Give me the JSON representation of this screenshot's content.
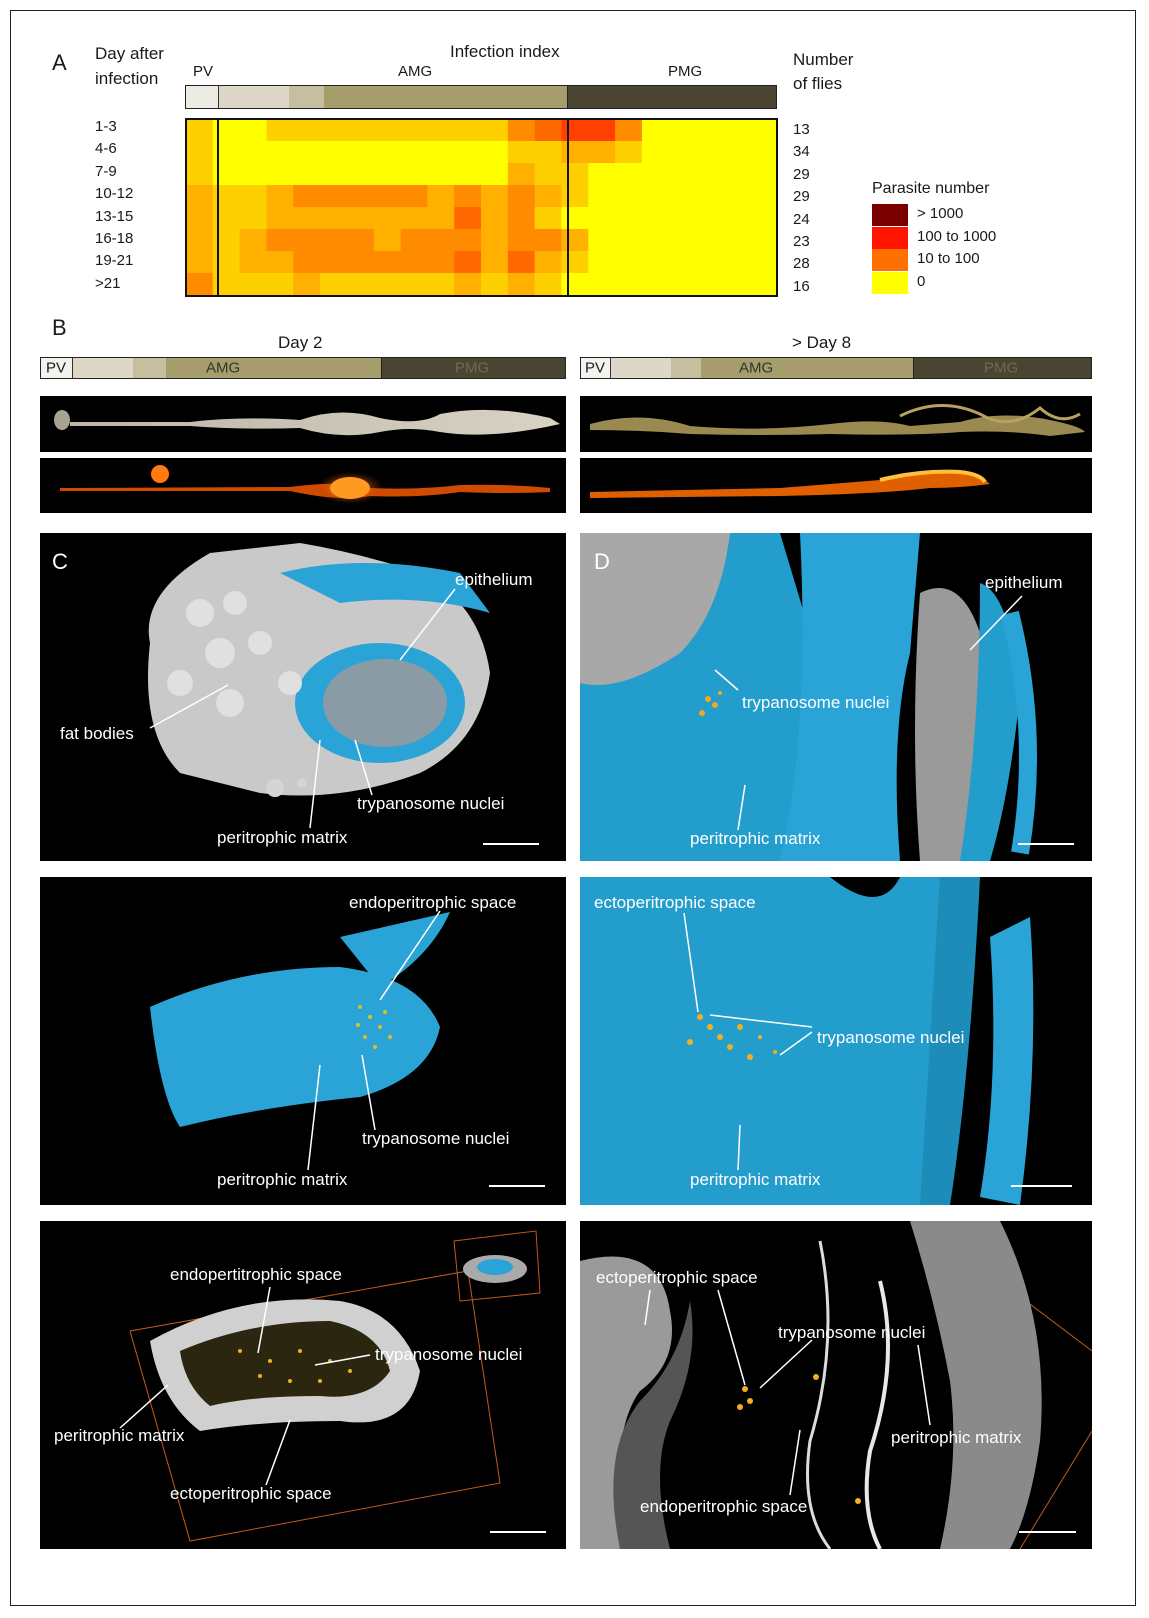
{
  "panels": {
    "A": {
      "letter": "A",
      "header_left_line1": "Day after",
      "header_left_line2": "infection",
      "header_center": "Infection index",
      "header_right_line1": "Number",
      "header_right_line2": "of flies",
      "bar_labels": {
        "pv": "PV",
        "amg": "AMG",
        "pmg": "PMG"
      },
      "legend": {
        "title": "Parasite number",
        "items": [
          {
            "label": "> 1000",
            "color": "#7a0000"
          },
          {
            "label": "100 to 1000",
            "color": "#ff1500"
          },
          {
            "label": "10 to 100",
            "color": "#ff7000"
          },
          {
            "label": "0",
            "color": "#ffff00"
          }
        ]
      }
    },
    "B": {
      "letter": "B",
      "left_title": "Day 2",
      "right_title": "> Day 8",
      "bar_labels": {
        "pv": "PV",
        "amg": "AMG",
        "pmg": "PMG"
      }
    },
    "C": {
      "letter": "C",
      "row1": {
        "epithelium": "epithelium",
        "fat_bodies": "fat bodies",
        "trypanosome_nuclei": "trypanosome nuclei",
        "peritrophic_matrix": "peritrophic matrix"
      },
      "row2": {
        "endoperitrophic_space": "endoperitrophic space",
        "trypanosome_nuclei": "trypanosome nuclei",
        "peritrophic_matrix": "peritrophic matrix"
      },
      "row3": {
        "endopertitrophic_space": "endopertitrophic space",
        "trypanosome_nuclei": "trypanosome nuclei",
        "peritrophic_matrix": "peritrophic matrix",
        "ectoperitrophic_space": "ectoperitrophic space"
      }
    },
    "D": {
      "letter": "D",
      "row1": {
        "epithelium": "epithelium",
        "trypanosome_nuclei": "trypanosome nuclei",
        "peritrophic_matrix": "peritrophic matrix"
      },
      "row2": {
        "ectoperitrophic_space": "ectoperitrophic space",
        "trypanosome_nuclei": "trypanosome nuclei",
        "peritrophic_matrix": "peritrophic matrix"
      },
      "row3": {
        "ectoperitrophic_space": "ectoperitrophic space",
        "trypanosome_nuclei": "trypanosome nuclei",
        "peritrophic_matrix": "peritrophic matrix",
        "endoperitrophic_space": "endoperitrophic space"
      }
    }
  },
  "chart_data": {
    "type": "heatmap",
    "rows": [
      "1-3",
      "4-6",
      "7-9",
      "10-12",
      "13-15",
      "16-18",
      "19-21",
      ">21"
    ],
    "fly_counts": [
      "13",
      "34",
      "29",
      "29",
      "24",
      "23",
      "28",
      "16"
    ],
    "scale_colors": [
      "#ffff00",
      "#ffd000",
      "#ffb000",
      "#ff8c00",
      "#ff6a00",
      "#ff4000"
    ],
    "matrix": [
      [
        1,
        0,
        0,
        1,
        1,
        1,
        1,
        1,
        1,
        1,
        1,
        1,
        3,
        4,
        5,
        5,
        3,
        0,
        0,
        0,
        0,
        0
      ],
      [
        1,
        0,
        0,
        0,
        0,
        0,
        0,
        0,
        0,
        0,
        0,
        0,
        1,
        1,
        2,
        2,
        1,
        0,
        0,
        0,
        0,
        0
      ],
      [
        1,
        0,
        0,
        0,
        0,
        0,
        0,
        0,
        0,
        0,
        0,
        0,
        2,
        1,
        1,
        0,
        0,
        0,
        0,
        0,
        0,
        0
      ],
      [
        2,
        1,
        1,
        2,
        3,
        3,
        3,
        3,
        3,
        2,
        3,
        2,
        3,
        2,
        1,
        0,
        0,
        0,
        0,
        0,
        0,
        0
      ],
      [
        2,
        1,
        1,
        2,
        2,
        2,
        2,
        2,
        2,
        2,
        4,
        2,
        3,
        1,
        0,
        0,
        0,
        0,
        0,
        0,
        0,
        0
      ],
      [
        2,
        1,
        2,
        3,
        3,
        3,
        3,
        2,
        3,
        3,
        3,
        2,
        3,
        3,
        2,
        0,
        0,
        0,
        0,
        0,
        0,
        0
      ],
      [
        2,
        1,
        2,
        2,
        3,
        3,
        3,
        3,
        3,
        3,
        4,
        2,
        4,
        2,
        1,
        0,
        0,
        0,
        0,
        0,
        0,
        0
      ],
      [
        3,
        1,
        1,
        1,
        2,
        1,
        1,
        1,
        1,
        1,
        2,
        1,
        2,
        1,
        0,
        0,
        0,
        0,
        0,
        0,
        0,
        0
      ]
    ]
  }
}
